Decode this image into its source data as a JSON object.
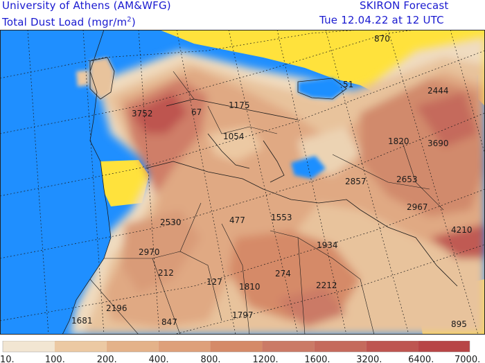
{
  "header": {
    "left_line1": "University of Athens (AM&WFG)",
    "left_line2": "Total Dust Load (mgr/m",
    "left_line2_sup": "2",
    "left_line2_end": ")",
    "right_line1": "SKIRON Forecast",
    "right_line2": "Tue 12.04.22 at 12 UTC"
  },
  "map_labels": [
    {
      "text": "870",
      "color": "#222"
    },
    {
      "text": "51"
    },
    {
      "text": "2444"
    },
    {
      "text": "1175"
    },
    {
      "text": "3752"
    },
    {
      "text": "67"
    },
    {
      "text": "1054"
    },
    {
      "text": "1820"
    },
    {
      "text": "3690"
    },
    {
      "text": "2857"
    },
    {
      "text": "2653"
    },
    {
      "text": "2967"
    },
    {
      "text": "4210"
    },
    {
      "text": "2530"
    },
    {
      "text": "477"
    },
    {
      "text": "1553"
    },
    {
      "text": "1934"
    },
    {
      "text": "2970"
    },
    {
      "text": "212"
    },
    {
      "text": "127"
    },
    {
      "text": "1810"
    },
    {
      "text": "274"
    },
    {
      "text": "2212"
    },
    {
      "text": "2196"
    },
    {
      "text": "1797"
    },
    {
      "text": "1681"
    },
    {
      "text": "847"
    },
    {
      "text": "895"
    }
  ],
  "legend": {
    "colors": [
      "#f2e6d2",
      "#ecc9a3",
      "#e4b289",
      "#dea07a",
      "#d58a68",
      "#cb7a66",
      "#c56a5c",
      "#be5550",
      "#b84546"
    ],
    "labels": [
      "10.",
      "100.",
      "200.",
      "400.",
      "800.",
      "1200.",
      "1600.",
      "3200.",
      "6400.",
      "7000."
    ]
  },
  "colors": {
    "sea": "#1f8fff",
    "no_dust": "#ffe23c",
    "title_text": "#1a1ad0"
  }
}
